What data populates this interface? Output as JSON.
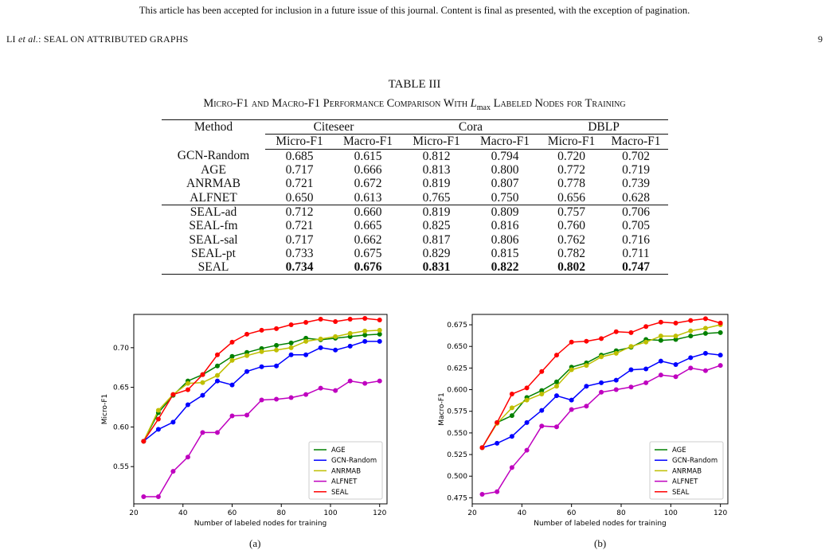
{
  "header": {
    "notice": "This article has been accepted for inclusion in a future issue of this journal. Content is final as presented, with the exception of pagination.",
    "running_head_author": "LI",
    "running_head_etal": "et al.",
    "running_head_title": ": SEAL ON ATTRIBUTED GRAPHS",
    "page_number": "9"
  },
  "table": {
    "label": "TABLE III",
    "caption_pre": "Micro-F1 and Macro-F1 Performance Comparison With ",
    "caption_var": "L",
    "caption_sub": "max",
    "caption_post": " Labeled Nodes for Training",
    "method_header": "Method",
    "datasets": [
      "Citeseer",
      "Cora",
      "DBLP"
    ],
    "metrics": [
      "Micro-F1",
      "Macro-F1",
      "Micro-F1",
      "Macro-F1",
      "Micro-F1",
      "Macro-F1"
    ],
    "group1": [
      {
        "method": "GCN-Random",
        "values": [
          "0.685",
          "0.615",
          "0.812",
          "0.794",
          "0.720",
          "0.702"
        ]
      },
      {
        "method": "AGE",
        "values": [
          "0.717",
          "0.666",
          "0.813",
          "0.800",
          "0.772",
          "0.719"
        ]
      },
      {
        "method": "ANRMAB",
        "values": [
          "0.721",
          "0.672",
          "0.819",
          "0.807",
          "0.778",
          "0.739"
        ]
      },
      {
        "method": "ALFNET",
        "values": [
          "0.650",
          "0.613",
          "0.765",
          "0.750",
          "0.656",
          "0.628"
        ]
      }
    ],
    "group2": [
      {
        "method": "SEAL-ad",
        "values": [
          "0.712",
          "0.660",
          "0.819",
          "0.809",
          "0.757",
          "0.706"
        ]
      },
      {
        "method": "SEAL-fm",
        "values": [
          "0.721",
          "0.665",
          "0.825",
          "0.816",
          "0.760",
          "0.705"
        ]
      },
      {
        "method": "SEAL-sal",
        "values": [
          "0.717",
          "0.662",
          "0.817",
          "0.806",
          "0.762",
          "0.716"
        ]
      },
      {
        "method": "SEAL-pt",
        "values": [
          "0.733",
          "0.675",
          "0.829",
          "0.815",
          "0.782",
          "0.711"
        ]
      },
      {
        "method": "SEAL",
        "values": [
          "0.734",
          "0.676",
          "0.831",
          "0.822",
          "0.802",
          "0.747"
        ],
        "bold": true
      }
    ]
  },
  "chart_data": [
    {
      "type": "line",
      "sublabel": "(a)",
      "xlabel": "Number of labeled nodes for training",
      "ylabel": "Micro-F1",
      "xlim": [
        20,
        123
      ],
      "ylim": [
        0.503,
        0.742
      ],
      "xticks": [
        20,
        40,
        60,
        80,
        100,
        120
      ],
      "yticks": [
        0.55,
        0.6,
        0.65,
        0.7
      ],
      "ytick_labels": [
        "0.55",
        "0.60",
        "0.65",
        "0.70"
      ],
      "grid": false,
      "legend_position": "lower-right",
      "x": [
        24,
        30,
        36,
        42,
        48,
        54,
        60,
        66,
        72,
        78,
        84,
        90,
        96,
        102,
        108,
        114,
        120
      ],
      "series": [
        {
          "name": "AGE",
          "color": "#008000",
          "values": [
            0.582,
            0.618,
            0.64,
            0.658,
            0.666,
            0.677,
            0.689,
            0.694,
            0.699,
            0.703,
            0.706,
            0.712,
            0.71,
            0.712,
            0.714,
            0.716,
            0.717
          ]
        },
        {
          "name": "GCN-Random",
          "color": "#0000ff",
          "values": [
            0.582,
            0.597,
            0.606,
            0.628,
            0.64,
            0.658,
            0.653,
            0.67,
            0.676,
            0.677,
            0.691,
            0.691,
            0.7,
            0.697,
            0.702,
            0.708,
            0.708
          ]
        },
        {
          "name": "ANRMAB",
          "color": "#bfbf00",
          "values": [
            0.582,
            0.621,
            0.641,
            0.655,
            0.656,
            0.665,
            0.684,
            0.69,
            0.695,
            0.697,
            0.7,
            0.708,
            0.711,
            0.714,
            0.718,
            0.721,
            0.722
          ]
        },
        {
          "name": "ALFNET",
          "color": "#bf00bf",
          "values": [
            0.512,
            0.512,
            0.544,
            0.562,
            0.593,
            0.593,
            0.614,
            0.615,
            0.634,
            0.635,
            0.637,
            0.641,
            0.649,
            0.646,
            0.658,
            0.655,
            0.658
          ]
        },
        {
          "name": "SEAL",
          "color": "#ff0000",
          "values": [
            0.582,
            0.61,
            0.641,
            0.647,
            0.666,
            0.691,
            0.707,
            0.717,
            0.722,
            0.724,
            0.729,
            0.732,
            0.736,
            0.733,
            0.736,
            0.737,
            0.735
          ]
        }
      ]
    },
    {
      "type": "line",
      "sublabel": "(b)",
      "xlabel": "Number of labeled nodes for training",
      "ylabel": "Macro-F1",
      "xlim": [
        20,
        123
      ],
      "ylim": [
        0.468,
        0.687
      ],
      "xticks": [
        20,
        40,
        60,
        80,
        100,
        120
      ],
      "yticks": [
        0.475,
        0.5,
        0.525,
        0.55,
        0.575,
        0.6,
        0.625,
        0.65,
        0.675
      ],
      "ytick_labels": [
        "0.475",
        "0.500",
        "0.525",
        "0.550",
        "0.575",
        "0.600",
        "0.625",
        "0.650",
        "0.675"
      ],
      "grid": false,
      "legend_position": "lower-right",
      "x": [
        24,
        30,
        36,
        42,
        48,
        54,
        60,
        66,
        72,
        78,
        84,
        90,
        96,
        102,
        108,
        114,
        120
      ],
      "series": [
        {
          "name": "AGE",
          "color": "#008000",
          "values": [
            0.533,
            0.562,
            0.57,
            0.591,
            0.599,
            0.609,
            0.626,
            0.631,
            0.64,
            0.645,
            0.649,
            0.658,
            0.657,
            0.658,
            0.662,
            0.665,
            0.666
          ]
        },
        {
          "name": "GCN-Random",
          "color": "#0000ff",
          "values": [
            0.533,
            0.538,
            0.546,
            0.562,
            0.576,
            0.593,
            0.588,
            0.604,
            0.608,
            0.611,
            0.623,
            0.624,
            0.633,
            0.629,
            0.637,
            0.642,
            0.64
          ]
        },
        {
          "name": "ANRMAB",
          "color": "#bfbf00",
          "values": [
            0.533,
            0.561,
            0.579,
            0.588,
            0.595,
            0.604,
            0.623,
            0.628,
            0.638,
            0.642,
            0.65,
            0.655,
            0.662,
            0.662,
            0.668,
            0.671,
            0.675
          ]
        },
        {
          "name": "ALFNET",
          "color": "#bf00bf",
          "values": [
            0.479,
            0.482,
            0.51,
            0.53,
            0.558,
            0.557,
            0.577,
            0.581,
            0.597,
            0.6,
            0.603,
            0.608,
            0.617,
            0.615,
            0.625,
            0.622,
            0.628
          ]
        },
        {
          "name": "SEAL",
          "color": "#ff0000",
          "values": [
            0.533,
            0.562,
            0.595,
            0.602,
            0.621,
            0.64,
            0.655,
            0.656,
            0.659,
            0.667,
            0.666,
            0.673,
            0.678,
            0.677,
            0.68,
            0.682,
            0.677
          ]
        }
      ]
    }
  ]
}
